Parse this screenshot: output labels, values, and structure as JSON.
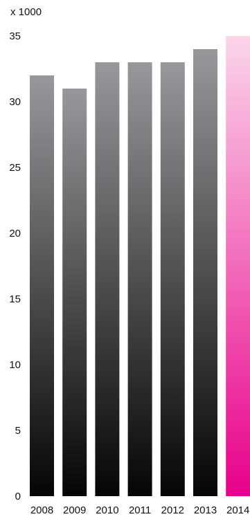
{
  "chart_data": {
    "type": "bar",
    "unit_label": "x 1000",
    "categories": [
      "2008",
      "2009",
      "2010",
      "2011",
      "2012",
      "2013",
      "2014"
    ],
    "values": [
      32,
      31,
      33,
      33,
      33,
      34,
      35
    ],
    "highlight_category": "2014",
    "ylim": [
      0,
      35
    ],
    "yticks": [
      "0",
      "5",
      "10",
      "15",
      "20",
      "25",
      "30",
      "35"
    ],
    "grid": false,
    "legend": "none",
    "colors": {
      "bar_top": "#98989c",
      "bar_bottom": "#050505",
      "highlight_top": "#fbd5ea",
      "highlight_bottom": "#e8008a",
      "text": "#111111"
    }
  }
}
